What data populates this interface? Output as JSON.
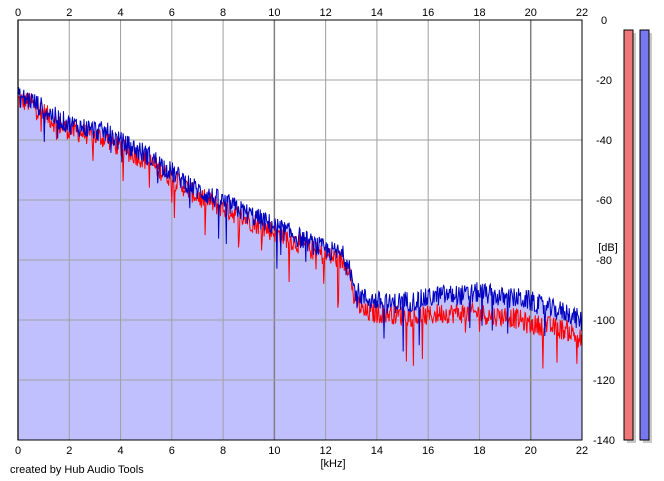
{
  "chart_data": {
    "type": "line",
    "title": "",
    "xlabel": "[kHz]",
    "ylabel": "[dB]",
    "xlim": [
      0,
      22
    ],
    "ylim": [
      -140,
      0
    ],
    "x_ticks": [
      "0",
      "2",
      "4",
      "6",
      "8",
      "10",
      "12",
      "14",
      "16",
      "18",
      "20",
      "22"
    ],
    "y_ticks": [
      "0",
      "-20",
      "-40",
      "-60",
      "-80",
      "-100",
      "-120",
      "-140"
    ],
    "grid": true,
    "legend": "none",
    "credit": "created by Hub Audio Tools",
    "fill_color": "#c0c0ff",
    "series": [
      {
        "color": "#ff0000",
        "x": [
          0,
          0.5,
          1,
          1.5,
          2,
          2.5,
          3,
          3.5,
          4,
          4.5,
          5,
          5.5,
          6,
          6.5,
          7,
          7.5,
          8,
          8.5,
          9,
          9.5,
          10,
          10.5,
          11,
          11.5,
          12,
          12.5,
          12.9,
          13.1,
          13.5,
          14,
          14.5,
          15,
          15.5,
          16,
          16.5,
          17,
          17.5,
          18,
          18.5,
          19,
          19.5,
          20,
          20.5,
          21,
          21.5,
          22
        ],
        "values": [
          -26,
          -27,
          -30,
          -34,
          -36,
          -37,
          -38,
          -39,
          -42,
          -44,
          -46,
          -49,
          -52,
          -55,
          -58,
          -60,
          -62,
          -64,
          -66,
          -68,
          -70,
          -72,
          -74,
          -76,
          -78,
          -79,
          -81,
          -92,
          -97,
          -97,
          -97,
          -98,
          -98,
          -98,
          -97,
          -97,
          -97,
          -97,
          -98,
          -98,
          -99,
          -101,
          -101,
          -102,
          -103,
          -106
        ]
      },
      {
        "color": "#0000c0",
        "x": [
          0,
          0.5,
          1,
          1.5,
          2,
          2.5,
          3,
          3.5,
          4,
          4.5,
          5,
          5.5,
          6,
          6.5,
          7,
          7.5,
          8,
          8.5,
          9,
          9.5,
          10,
          10.5,
          11,
          11.5,
          12,
          12.5,
          12.9,
          13.1,
          13.5,
          14,
          14.5,
          15,
          15.5,
          16,
          16.5,
          17,
          17.5,
          18,
          18.5,
          19,
          19.5,
          20,
          20.5,
          21,
          21.5,
          22
        ],
        "values": [
          -25,
          -26,
          -29,
          -32,
          -34,
          -35,
          -36,
          -37,
          -40,
          -42,
          -44,
          -47,
          -50,
          -53,
          -56,
          -58,
          -60,
          -62,
          -64,
          -66,
          -68,
          -70,
          -72,
          -74,
          -76,
          -77,
          -79,
          -89,
          -92,
          -93,
          -94,
          -93,
          -93,
          -92,
          -91,
          -91,
          -91,
          -90,
          -91,
          -92,
          -92,
          -93,
          -95,
          -96,
          -97,
          -100
        ]
      }
    ],
    "meters": [
      {
        "color": "#ee7777",
        "level": 1.0
      },
      {
        "color": "#7777ee",
        "level": 1.0
      }
    ]
  }
}
